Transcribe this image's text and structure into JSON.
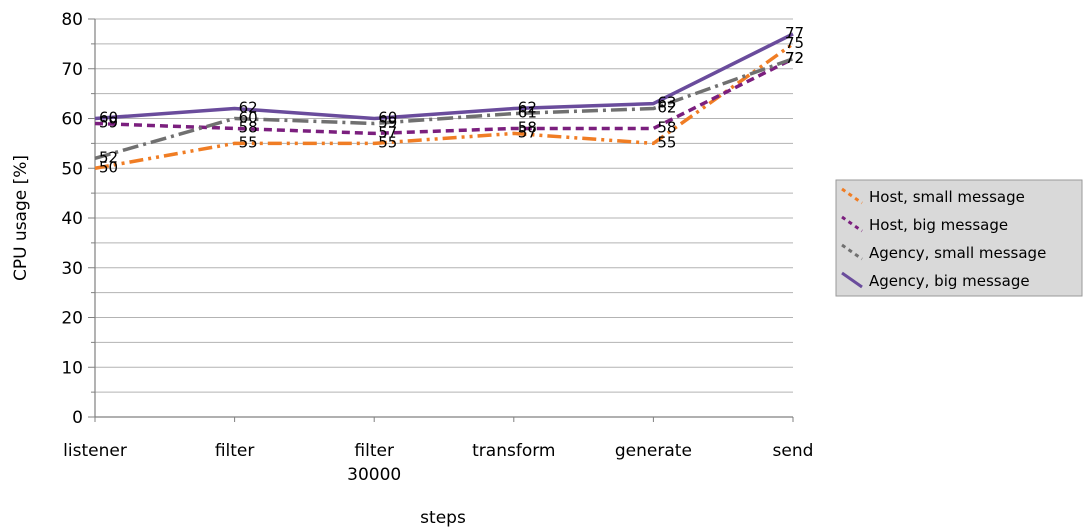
{
  "chart_data": {
    "type": "line",
    "categories": [
      [
        "listener"
      ],
      [
        "filter"
      ],
      [
        "filter",
        "30000"
      ],
      [
        "transform"
      ],
      [
        "generate"
      ],
      [
        "send"
      ]
    ],
    "xlabel": "steps",
    "ylabel": "CPU usage [%]",
    "ylim": [
      0,
      80
    ],
    "yticks": [
      0,
      10,
      20,
      30,
      40,
      50,
      60,
      70,
      80
    ],
    "grid": "horizontal",
    "legend_position": "right",
    "series": [
      {
        "name": "Host, small message",
        "values": [
          50,
          55,
          55,
          57,
          55,
          75
        ],
        "color": "#f07d24",
        "style": "dash-dot-dot"
      },
      {
        "name": "Host, big message",
        "values": [
          59,
          58,
          57,
          58,
          58,
          72
        ],
        "color": "#7b1f7e",
        "style": "dash"
      },
      {
        "name": "Agency, small message",
        "values": [
          52,
          60,
          59,
          61,
          62,
          72
        ],
        "color": "#707070",
        "style": "dash-dot"
      },
      {
        "name": "Agency, big message",
        "values": [
          60,
          62,
          60,
          62,
          63,
          77
        ],
        "color": "#6a4c9c",
        "style": "solid"
      }
    ]
  }
}
